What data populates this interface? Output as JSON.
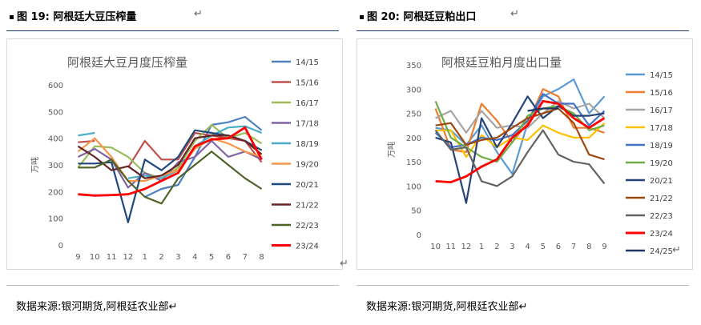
{
  "figure_left": {
    "label": "图 19:",
    "title": "阿根廷大豆压榨量",
    "source": "数据来源:银河期货,阿根廷农业部",
    "return_mark": "↵"
  },
  "figure_right": {
    "label": "图 20:",
    "title": "阿根廷豆粕出口",
    "source": "数据来源:银河期货,阿根廷农业部",
    "return_mark": "↵"
  },
  "chart_data": [
    {
      "type": "line",
      "title": "阿根廷大豆月度压榨量",
      "xlabel": "",
      "ylabel": "万吨",
      "ylim": [
        0,
        600
      ],
      "yticks": [
        0,
        100,
        200,
        300,
        400,
        500,
        600
      ],
      "categories": [
        "9",
        "10",
        "11",
        "12",
        "1",
        "2",
        "3",
        "4",
        "5",
        "6",
        "7",
        "8"
      ],
      "legend_position": "right",
      "series": [
        {
          "name": "14/15",
          "color": "#4f81bd",
          "values": [
            null,
            null,
            null,
            null,
            180,
            210,
            225,
            330,
            450,
            460,
            480,
            430
          ]
        },
        {
          "name": "15/16",
          "color": "#c0504d",
          "values": [
            385,
            390,
            null,
            290,
            390,
            320,
            320,
            420,
            410,
            400,
            390,
            310
          ]
        },
        {
          "name": "16/17",
          "color": "#9bbb59",
          "values": [
            290,
            370,
            365,
            330,
            270,
            250,
            290,
            390,
            450,
            400,
            420,
            380
          ]
        },
        {
          "name": "17/18",
          "color": "#8064a2",
          "values": [
            330,
            360,
            320,
            215,
            270,
            240,
            310,
            330,
            390,
            330,
            350,
            320
          ]
        },
        {
          "name": "18/19",
          "color": "#4bacc6",
          "values": [
            410,
            420,
            null,
            250,
            260,
            250,
            280,
            370,
            410,
            440,
            445,
            420
          ]
        },
        {
          "name": "19/20",
          "color": "#f79646",
          "values": [
            350,
            400,
            330,
            240,
            240,
            260,
            280,
            360,
            400,
            380,
            350,
            330
          ]
        },
        {
          "name": "20/21",
          "color": "#1f497d",
          "values": [
            305,
            305,
            310,
            85,
            320,
            280,
            330,
            430,
            420,
            410,
            390,
            355
          ]
        },
        {
          "name": "21/22",
          "color": "#632523",
          "values": [
            370,
            330,
            280,
            295,
            250,
            260,
            300,
            400,
            410,
            410,
            390,
            340
          ]
        },
        {
          "name": "22/23",
          "color": "#4f6228",
          "values": [
            290,
            290,
            320,
            240,
            180,
            155,
            250,
            300,
            350,
            300,
            250,
            210
          ]
        },
        {
          "name": "23/24",
          "color": "#ff0000",
          "values": [
            190,
            185,
            187,
            190,
            210,
            240,
            270,
            370,
            395,
            400,
            440,
            320
          ]
        }
      ]
    },
    {
      "type": "line",
      "title": "阿根廷豆粕月度出口量",
      "xlabel": "",
      "ylabel": "万吨",
      "ylim": [
        0,
        350
      ],
      "yticks": [
        0,
        50,
        100,
        150,
        200,
        250,
        300,
        350
      ],
      "categories": [
        "10",
        "11",
        "12",
        "1",
        "2",
        "3",
        "4",
        "5",
        "6",
        "7",
        "8",
        "9"
      ],
      "legend_position": "right",
      "series": [
        {
          "name": "14/15",
          "color": "#5b9bd5",
          "values": [
            220,
            215,
            185,
            225,
            170,
            125,
            230,
            285,
            300,
            320,
            250,
            285
          ]
        },
        {
          "name": "15/16",
          "color": "#ed7d31",
          "values": [
            260,
            175,
            170,
            270,
            235,
            190,
            230,
            300,
            285,
            220,
            220,
            210
          ]
        },
        {
          "name": "16/17",
          "color": "#a5a5a5",
          "values": [
            240,
            255,
            210,
            255,
            220,
            225,
            220,
            250,
            275,
            260,
            270,
            240
          ]
        },
        {
          "name": "17/18",
          "color": "#ffc000",
          "values": [
            215,
            215,
            160,
            205,
            180,
            200,
            195,
            225,
            210,
            200,
            200,
            230
          ]
        },
        {
          "name": "18/19",
          "color": "#4472c4",
          "values": [
            210,
            180,
            185,
            200,
            195,
            205,
            235,
            290,
            270,
            270,
            225,
            255
          ]
        },
        {
          "name": "19/20",
          "color": "#70ad47",
          "values": [
            275,
            200,
            180,
            160,
            150,
            190,
            245,
            260,
            265,
            250,
            215,
            225
          ]
        },
        {
          "name": "20/21",
          "color": "#264478",
          "values": [
            200,
            190,
            65,
            240,
            180,
            230,
            285,
            240,
            265,
            245,
            245,
            250
          ]
        },
        {
          "name": "21/22",
          "color": "#9e480e",
          "values": [
            225,
            230,
            185,
            195,
            200,
            220,
            240,
            250,
            260,
            230,
            165,
            155
          ]
        },
        {
          "name": "22/23",
          "color": "#636363",
          "values": [
            215,
            175,
            180,
            110,
            100,
            120,
            170,
            215,
            165,
            150,
            145,
            105
          ]
        },
        {
          "name": "23/24",
          "color": "#ff0000",
          "values": [
            110,
            108,
            120,
            140,
            155,
            200,
            225,
            275,
            270,
            240,
            220,
            240
          ]
        },
        {
          "name": "24/25",
          "color": "#1f3864",
          "values": [
            null,
            null,
            null,
            null,
            null,
            null,
            255,
            260,
            260,
            null,
            null,
            null
          ]
        }
      ]
    }
  ]
}
